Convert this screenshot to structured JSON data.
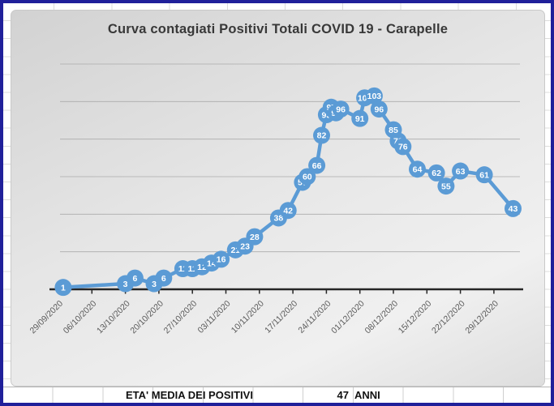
{
  "chart_data": {
    "type": "line",
    "title": "Curva contagiati Positivi Totali COVID 19 - Carapelle",
    "x_tick_labels": [
      "29/09/2020",
      "06/10/2020",
      "13/10/2020",
      "20/10/2020",
      "27/10/2020",
      "03/11/2020",
      "10/11/2020",
      "17/11/2020",
      "24/11/2020",
      "01/12/2020",
      "08/12/2020",
      "15/12/2020",
      "22/12/2020",
      "29/12/2020"
    ],
    "values": [
      1,
      3,
      6,
      3,
      6,
      11,
      11,
      12,
      14,
      16,
      21,
      23,
      28,
      38,
      42,
      57,
      60,
      66,
      82,
      93,
      97,
      94,
      96,
      91,
      102,
      103,
      96,
      85,
      79,
      76,
      64,
      62,
      55,
      63,
      61,
      43
    ],
    "x_days": [
      1,
      14,
      16,
      20,
      22,
      26,
      28,
      30,
      32,
      34,
      37,
      39,
      41,
      46,
      48,
      51,
      52,
      54,
      55,
      56,
      57,
      58,
      59,
      63,
      64,
      66,
      67,
      70,
      71,
      72,
      75,
      79,
      81,
      84,
      89,
      95
    ],
    "ylim": [
      0,
      120
    ],
    "y_major_unit": 20,
    "grid": true,
    "legend": "none",
    "colors": {
      "marker": "#5b9bd5",
      "marker_label": "#ffffff",
      "axis": "#262626",
      "gridline": "#ababab",
      "tick_label": "#595959",
      "title": "#383838"
    }
  },
  "footer": {
    "label": "ETA' MEDIA DEI POSITIVI",
    "value": "47",
    "unit": "ANNI"
  }
}
